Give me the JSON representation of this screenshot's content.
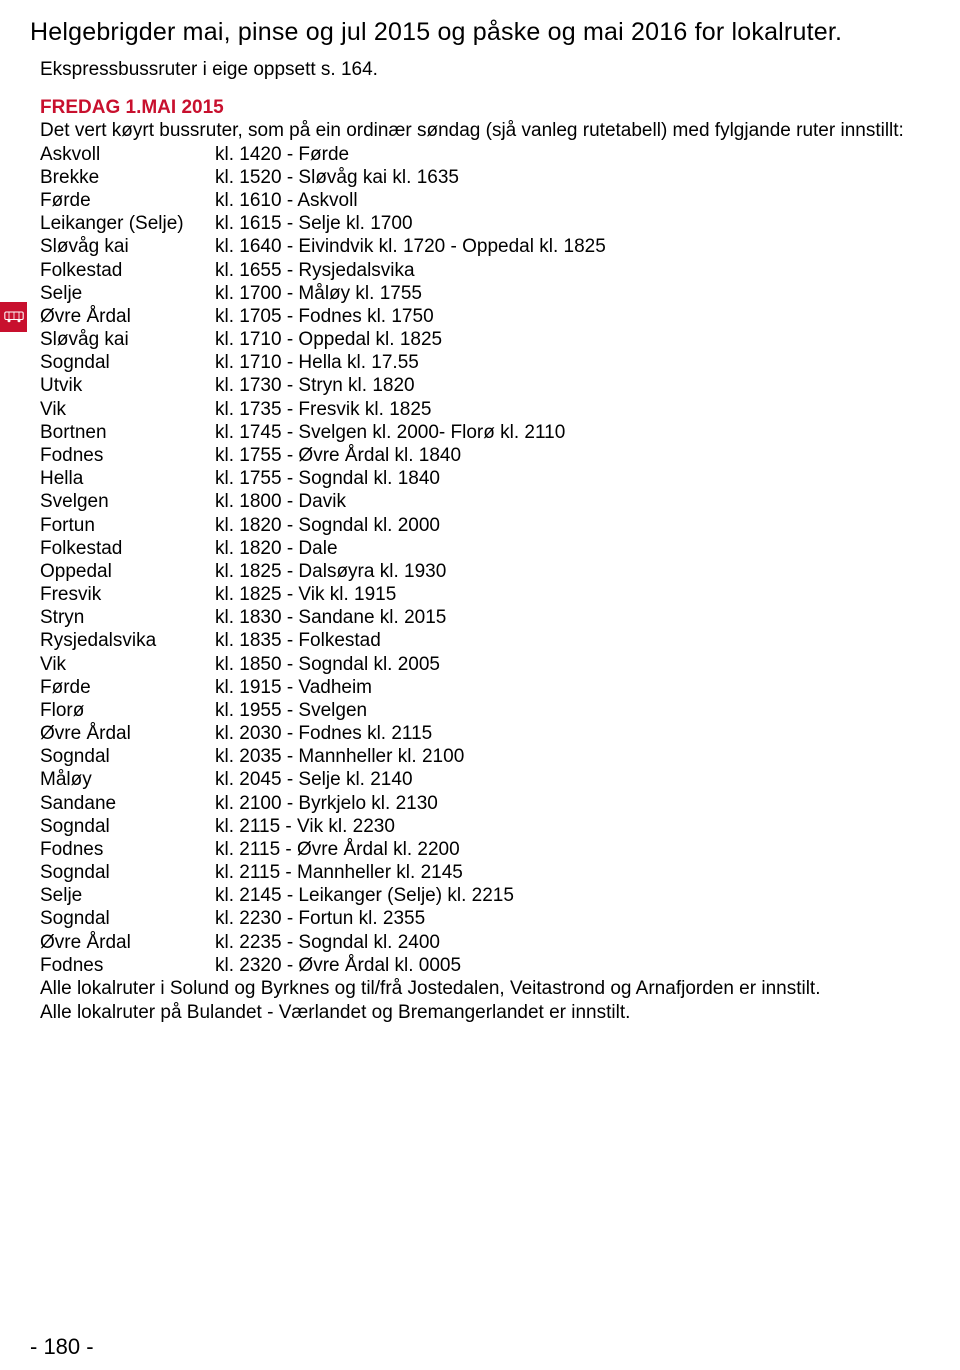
{
  "colors": {
    "accent": "#c8102e",
    "text": "#000000",
    "background": "#ffffff"
  },
  "typography": {
    "title_fontsize": 25,
    "body_fontsize": 19,
    "line_height": 1.22,
    "font_family": "Arial"
  },
  "title": "Helgebrigder mai, pinse og jul 2015 og påske og mai 2016 for lokalruter.",
  "subtitle": "Ekspressbussruter i eige oppsett s. 164.",
  "section_header": "FREDAG 1.MAI 2015",
  "intro": "Det vert køyrt bussruter, som på ein ordinær søndag (sjå vanleg rutetabell) med fylgjande ruter innstillt:",
  "routes": [
    {
      "from": "Askvoll",
      "to": "kl. 1420 -  Førde"
    },
    {
      "from": "Brekke",
      "to": "kl. 1520 -  Sløvåg kai kl. 1635"
    },
    {
      "from": "Førde",
      "to": "kl. 1610 -  Askvoll"
    },
    {
      "from": "Leikanger (Selje)",
      "to": "kl. 1615 -  Selje kl. 1700"
    },
    {
      "from": "Sløvåg kai",
      "to": "kl. 1640 -  Eivindvik kl. 1720 - Oppedal kl. 1825"
    },
    {
      "from": "Folkestad",
      "to": "kl. 1655 -  Rysjedalsvika"
    },
    {
      "from": "Selje",
      "to": "kl. 1700 -  Måløy kl. 1755"
    },
    {
      "from": "Øvre Årdal",
      "to": "kl. 1705 -  Fodnes kl. 1750"
    },
    {
      "from": "Sløvåg kai",
      "to": "kl. 1710 -  Oppedal kl. 1825"
    },
    {
      "from": "Sogndal",
      "to": "kl. 1710 -  Hella kl. 17.55"
    },
    {
      "from": "Utvik",
      "to": "kl. 1730 -  Stryn kl. 1820"
    },
    {
      "from": "Vik",
      "to": "kl. 1735 -  Fresvik kl. 1825"
    },
    {
      "from": "Bortnen",
      "to": "kl. 1745 -  Svelgen kl. 2000- Florø kl. 2110"
    },
    {
      "from": "Fodnes",
      "to": "kl. 1755 -  Øvre Årdal kl. 1840"
    },
    {
      "from": "Hella",
      "to": "kl. 1755 -  Sogndal  kl. 1840"
    },
    {
      "from": "Svelgen",
      "to": "kl. 1800 -  Davik"
    },
    {
      "from": "Fortun",
      "to": "kl. 1820 -  Sogndal kl. 2000"
    },
    {
      "from": "Folkestad",
      "to": "kl. 1820 -  Dale"
    },
    {
      "from": "Oppedal",
      "to": "kl. 1825 -  Dalsøyra kl. 1930"
    },
    {
      "from": "Fresvik",
      "to": "kl. 1825 -  Vik kl. 1915"
    },
    {
      "from": "Stryn",
      "to": "kl. 1830 -  Sandane kl. 2015"
    },
    {
      "from": "Rysjedalsvika",
      "to": "kl. 1835 -  Folkestad"
    },
    {
      "from": "Vik",
      "to": "kl. 1850 -  Sogndal kl. 2005"
    },
    {
      "from": "Førde",
      "to": "kl. 1915 -  Vadheim"
    },
    {
      "from": "Florø",
      "to": "kl. 1955 -  Svelgen"
    },
    {
      "from": "Øvre Årdal",
      "to": "kl. 2030 -  Fodnes kl. 2115"
    },
    {
      "from": "Sogndal",
      "to": "kl. 2035 -  Mannheller kl. 2100"
    },
    {
      "from": "Måløy",
      "to": "kl. 2045 -  Selje kl. 2140"
    },
    {
      "from": "Sandane",
      "to": "kl. 2100 -  Byrkjelo kl. 2130"
    },
    {
      "from": "Sogndal",
      "to": "kl. 2115 -  Vik kl. 2230"
    },
    {
      "from": "Fodnes",
      "to": "kl. 2115 -  Øvre Årdal kl. 2200"
    },
    {
      "from": "Sogndal",
      "to": "kl. 2115 -  Mannheller kl. 2145"
    },
    {
      "from": "Selje",
      "to": "kl. 2145 -  Leikanger (Selje) kl. 2215"
    },
    {
      "from": "Sogndal",
      "to": "kl. 2230 -  Fortun kl. 2355"
    },
    {
      "from": "Øvre Årdal",
      "to": "kl. 2235 -  Sogndal kl. 2400"
    },
    {
      "from": "Fodnes",
      "to": "kl. 2320 -  Øvre Årdal kl. 0005"
    }
  ],
  "note1": "Alle lokalruter i Solund og Byrknes og til/frå Jostedalen, Veitastrond og Arnafjorden er innstilt.",
  "note2": "Alle lokalruter på Bulandet - Værlandet og Bremangerlandet er innstilt.",
  "page_number": "- 180 -",
  "icon_name": "bus-icon"
}
